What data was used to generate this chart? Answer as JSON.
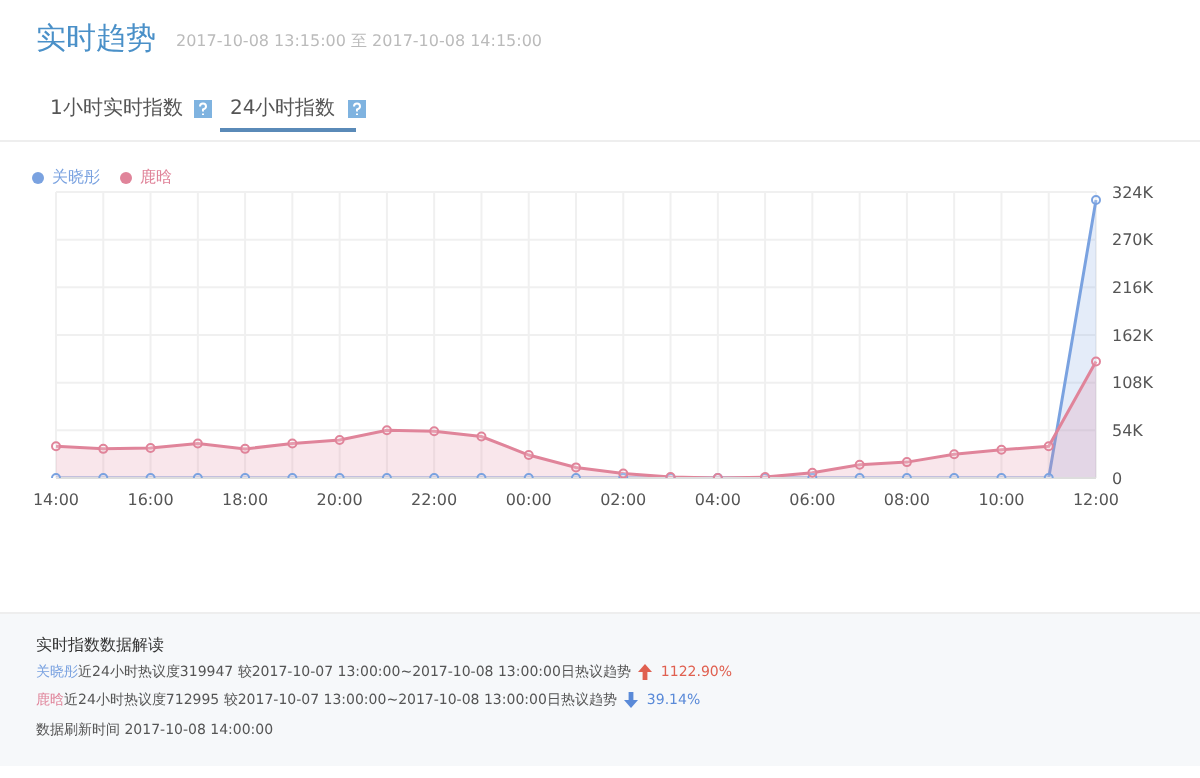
{
  "chart_data": {
    "type": "area",
    "title": "实时趋势",
    "subtitle": "2017-10-08 13:15:00 至 2017-10-08 14:15:00",
    "categories": [
      "14:00",
      null,
      "16:00",
      null,
      "18:00",
      null,
      "20:00",
      null,
      "22:00",
      null,
      "00:00",
      null,
      "02:00",
      null,
      "04:00",
      null,
      "06:00",
      null,
      "08:00",
      null,
      "10:00",
      null,
      "12:00"
    ],
    "series": [
      {
        "name": "关晓彤",
        "color": "#7aa2e0",
        "values": [
          0,
          0,
          0,
          0,
          0,
          0,
          0,
          0,
          0,
          0,
          0,
          0,
          0,
          0,
          0,
          0,
          0,
          0,
          0,
          0,
          0,
          0,
          315000
        ]
      },
      {
        "name": "鹿晗",
        "color": "#e0849a",
        "values": [
          36000,
          33000,
          34000,
          39000,
          33000,
          39000,
          43000,
          54000,
          53000,
          47000,
          26000,
          12000,
          5000,
          1000,
          0,
          1000,
          6000,
          15000,
          18000,
          27000,
          32000,
          36000,
          132000
        ]
      }
    ],
    "ylim": [
      0,
      324000
    ],
    "yticks": [
      0,
      {
        "value": 54000,
        "label": "54K"
      },
      {
        "value": 108000,
        "label": "108K"
      },
      {
        "value": 162000,
        "label": "162K"
      },
      {
        "value": 216000,
        "label": "216K"
      },
      {
        "value": 270000,
        "label": "270K"
      },
      {
        "value": 324000,
        "label": "324K"
      }
    ],
    "grid": true,
    "legend": "top left",
    "marker": "circle",
    "annotations": [
      "1小时实时指数",
      "24小时指数",
      "实时指数数据解读",
      "关晓彤近24小时热议度319947  较2017-10-07 13:00:00~2017-10-08 13:00:00日热议趋势 1122.90%",
      "鹿晗近24小时热议度712995  较2017-10-07 13:00:00~2017-10-08 13:00:00日热议趋势 39.14%",
      "数据刷新时间 2017-10-08 14:00:00"
    ]
  }
}
